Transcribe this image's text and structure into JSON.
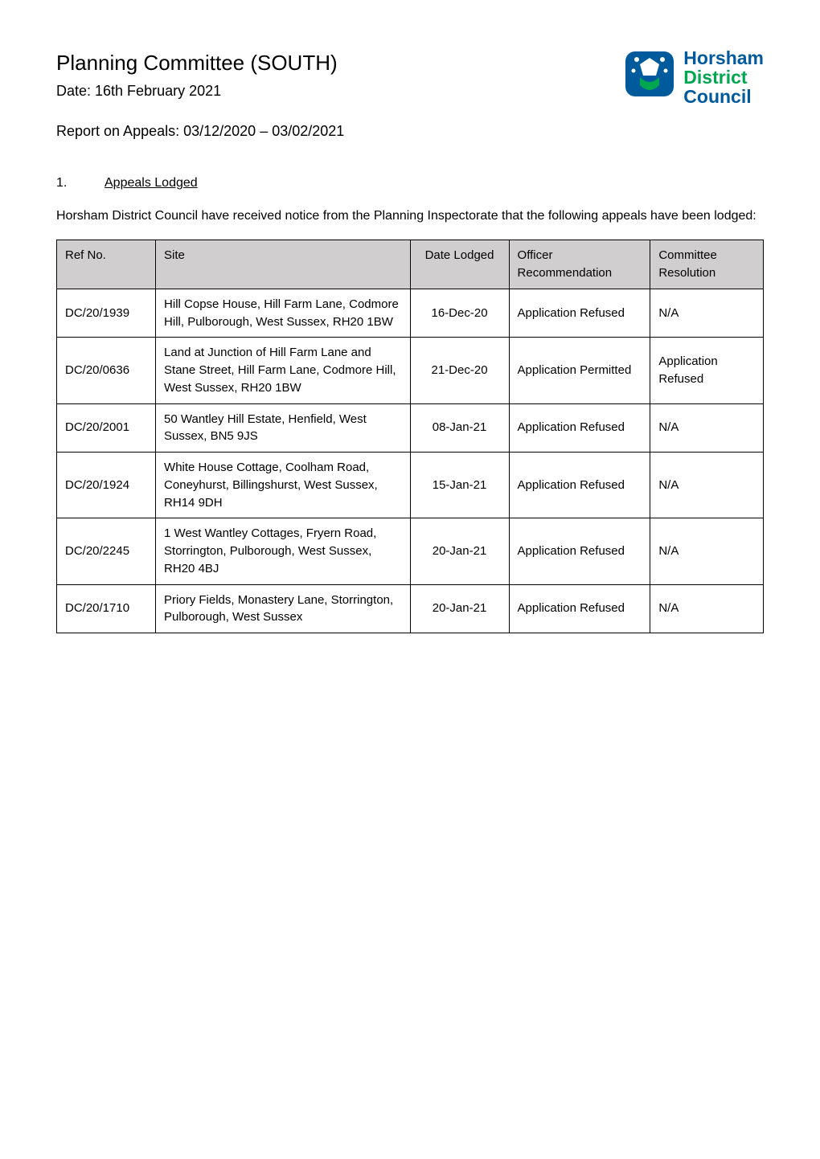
{
  "header": {
    "title": "Planning Committee (SOUTH)",
    "date_line": "Date: 16th February 2021",
    "report_line": "Report on Appeals: 03/12/2020 – 03/02/2021"
  },
  "logo": {
    "line1": "Horsham",
    "line2": "District",
    "line3": "Council",
    "icon_name": "horsham-district-logo",
    "colors": {
      "blue": "#005a9c",
      "green": "#00a650"
    }
  },
  "section": {
    "number": "1.",
    "label": "Appeals Lodged",
    "intro": "Horsham District Council have received notice from the Planning Inspectorate that the following appeals have been lodged:"
  },
  "table": {
    "headers": {
      "ref": "Ref No.",
      "site": "Site",
      "date": "Date Lodged",
      "rec": "Officer Recommendation",
      "res": "Committee Resolution"
    },
    "header_bg": "#d0cece",
    "border_color": "#000000",
    "rows": [
      {
        "ref": "DC/20/1939",
        "site": "Hill Copse House, Hill Farm Lane, Codmore Hill, Pulborough, West Sussex, RH20 1BW",
        "date": "16-Dec-20",
        "rec": "Application Refused",
        "res": "N/A"
      },
      {
        "ref": "DC/20/0636",
        "site": "Land at Junction of Hill Farm Lane and Stane Street, Hill Farm Lane, Codmore Hill, West Sussex, RH20 1BW",
        "date": "21-Dec-20",
        "rec": "Application Permitted",
        "res": "Application Refused"
      },
      {
        "ref": "DC/20/2001",
        "site": "50 Wantley Hill Estate, Henfield, West Sussex, BN5 9JS",
        "date": "08-Jan-21",
        "rec": "Application Refused",
        "res": "N/A"
      },
      {
        "ref": "DC/20/1924",
        "site": "White House Cottage, Coolham Road, Coneyhurst, Billingshurst, West Sussex, RH14 9DH",
        "date": "15-Jan-21",
        "rec": "Application Refused",
        "res": "N/A"
      },
      {
        "ref": "DC/20/2245",
        "site": "1 West Wantley Cottages, Fryern Road, Storrington, Pulborough, West Sussex, RH20 4BJ",
        "date": "20-Jan-21",
        "rec": "Application Refused",
        "res": "N/A"
      },
      {
        "ref": "DC/20/1710",
        "site": "Priory Fields, Monastery Lane, Storrington, Pulborough, West Sussex",
        "date": "20-Jan-21",
        "rec": "Application Refused",
        "res": "N/A"
      }
    ]
  }
}
